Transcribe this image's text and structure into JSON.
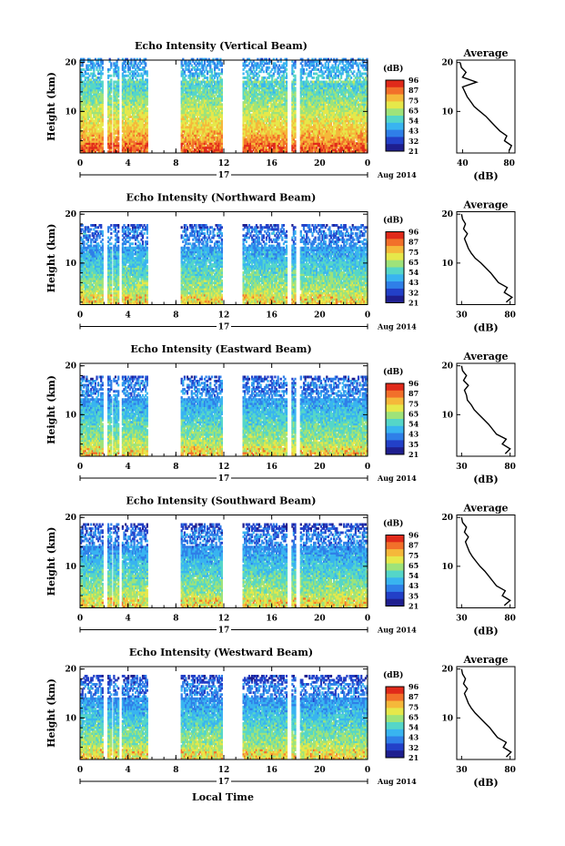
{
  "figure": {
    "xlabel": "Local Time",
    "date_day": "17",
    "date_label": "Aug 2014",
    "colorbar_unit": "(dB)",
    "avg_title": "Average",
    "avg_xlabel": "(dB)",
    "ylabel": "Height (km)"
  },
  "colors": {
    "cmap": [
      "#1f1f8f",
      "#2340c8",
      "#2f7fe8",
      "#39b4f0",
      "#55d6c8",
      "#9ee37a",
      "#e6e84a",
      "#f5b83a",
      "#f2702a",
      "#e02a1a"
    ]
  },
  "chart_data": [
    {
      "type": "heatmap",
      "title": "Echo Intensity (Vertical Beam)",
      "x_ticks": [
        "0",
        "4",
        "8",
        "12",
        "16",
        "20",
        "0"
      ],
      "y_ticks": [
        "20",
        "10"
      ],
      "xlim": [
        0,
        24
      ],
      "ylim": [
        1.5,
        20.5
      ],
      "colorbar_ticks": [
        "96",
        "87",
        "75",
        "65",
        "54",
        "43",
        "32",
        "21"
      ],
      "clim": [
        21,
        96
      ],
      "gaps_hours": [
        [
          1.9,
          2.3
        ],
        [
          2.6,
          2.8
        ],
        [
          3.2,
          3.5
        ],
        [
          5.6,
          8.4
        ],
        [
          11.9,
          13.5
        ],
        [
          17.3,
          17.6
        ],
        [
          18.0,
          18.3
        ]
      ],
      "top_height_km": 20,
      "surface_intensity_db": 85,
      "average_profile": {
        "xlim": [
          35,
          85
        ],
        "x_ticks": [
          "40",
          "80"
        ],
        "y_ticks": [
          "20",
          "10"
        ],
        "height_km": [
          2,
          3,
          4,
          5,
          6,
          7,
          8,
          9,
          10,
          11,
          12,
          13,
          14,
          15,
          16,
          17,
          18,
          19,
          20
        ],
        "intensity_db": [
          80,
          82,
          76,
          78,
          72,
          68,
          64,
          60,
          55,
          50,
          47,
          44,
          42,
          40,
          52,
          40,
          43,
          39,
          38
        ]
      }
    },
    {
      "type": "heatmap",
      "title": "Echo Intensity (Northward Beam)",
      "x_ticks": [
        "0",
        "4",
        "8",
        "12",
        "16",
        "20",
        "0"
      ],
      "y_ticks": [
        "20",
        "10"
      ],
      "xlim": [
        0,
        24
      ],
      "ylim": [
        1.5,
        20.5
      ],
      "colorbar_ticks": [
        "96",
        "87",
        "75",
        "65",
        "54",
        "43",
        "32",
        "21"
      ],
      "clim": [
        21,
        96
      ],
      "gaps_hours": [
        [
          1.9,
          2.3
        ],
        [
          2.6,
          2.8
        ],
        [
          3.2,
          3.5
        ],
        [
          5.6,
          8.4
        ],
        [
          11.9,
          13.5
        ],
        [
          17.3,
          17.6
        ],
        [
          18.0,
          18.3
        ]
      ],
      "top_height_km": 17,
      "surface_intensity_db": 70,
      "average_profile": {
        "xlim": [
          25,
          85
        ],
        "x_ticks": [
          "30",
          "80"
        ],
        "y_ticks": [
          "20",
          "10"
        ],
        "height_km": [
          2,
          3,
          4,
          5,
          6,
          7,
          8,
          9,
          10,
          11,
          12,
          13,
          14,
          15,
          16,
          17,
          18,
          19,
          20
        ],
        "intensity_db": [
          76,
          82,
          74,
          77,
          68,
          64,
          60,
          55,
          50,
          44,
          40,
          37,
          35,
          33,
          36,
          32,
          34,
          31,
          30
        ]
      }
    },
    {
      "type": "heatmap",
      "title": "Echo Intensity (Eastward Beam)",
      "x_ticks": [
        "0",
        "4",
        "8",
        "12",
        "16",
        "20",
        "0"
      ],
      "y_ticks": [
        "20",
        "10"
      ],
      "xlim": [
        0,
        24
      ],
      "ylim": [
        1.5,
        20.5
      ],
      "colorbar_ticks": [
        "96",
        "87",
        "75",
        "65",
        "54",
        "43",
        "35",
        "21"
      ],
      "clim": [
        21,
        96
      ],
      "gaps_hours": [
        [
          1.9,
          2.3
        ],
        [
          2.6,
          2.8
        ],
        [
          3.2,
          3.5
        ],
        [
          5.6,
          8.4
        ],
        [
          11.9,
          13.5
        ],
        [
          17.3,
          17.6
        ],
        [
          18.0,
          18.3
        ]
      ],
      "top_height_km": 17,
      "surface_intensity_db": 70,
      "average_profile": {
        "xlim": [
          25,
          85
        ],
        "x_ticks": [
          "30",
          "80"
        ],
        "y_ticks": [
          "20",
          "10"
        ],
        "height_km": [
          2,
          3,
          4,
          5,
          6,
          7,
          8,
          9,
          10,
          11,
          12,
          13,
          14,
          15,
          16,
          17,
          18,
          19,
          20
        ],
        "intensity_db": [
          75,
          80,
          72,
          76,
          66,
          62,
          58,
          53,
          48,
          43,
          40,
          36,
          35,
          33,
          37,
          32,
          35,
          31,
          30
        ]
      }
    },
    {
      "type": "heatmap",
      "title": "Echo Intensity (Southward Beam)",
      "x_ticks": [
        "0",
        "4",
        "8",
        "12",
        "16",
        "20",
        "0"
      ],
      "y_ticks": [
        "20",
        "10"
      ],
      "xlim": [
        0,
        24
      ],
      "ylim": [
        1.5,
        20.5
      ],
      "colorbar_ticks": [
        "96",
        "87",
        "75",
        "65",
        "54",
        "43",
        "35",
        "21"
      ],
      "clim": [
        21,
        96
      ],
      "gaps_hours": [
        [
          1.9,
          2.3
        ],
        [
          2.6,
          2.8
        ],
        [
          3.2,
          3.5
        ],
        [
          5.6,
          8.4
        ],
        [
          11.9,
          13.5
        ],
        [
          17.3,
          17.6
        ],
        [
          18.0,
          18.3
        ]
      ],
      "top_height_km": 18,
      "surface_intensity_db": 70,
      "average_profile": {
        "xlim": [
          25,
          85
        ],
        "x_ticks": [
          "30",
          "80"
        ],
        "y_ticks": [
          "20",
          "10"
        ],
        "height_km": [
          2,
          3,
          4,
          5,
          6,
          7,
          8,
          9,
          10,
          11,
          12,
          13,
          14,
          15,
          16,
          17,
          18,
          19,
          20
        ],
        "intensity_db": [
          74,
          80,
          72,
          75,
          66,
          62,
          58,
          54,
          49,
          45,
          41,
          38,
          36,
          34,
          37,
          33,
          35,
          31,
          30
        ]
      }
    },
    {
      "type": "heatmap",
      "title": "Echo Intensity (Westward Beam)",
      "x_ticks": [
        "0",
        "4",
        "8",
        "12",
        "16",
        "20",
        "0"
      ],
      "y_ticks": [
        "20",
        "10"
      ],
      "xlim": [
        0,
        24
      ],
      "ylim": [
        1.5,
        20.5
      ],
      "colorbar_ticks": [
        "96",
        "87",
        "75",
        "65",
        "54",
        "43",
        "32",
        "21"
      ],
      "clim": [
        21,
        96
      ],
      "gaps_hours": [
        [
          1.9,
          2.3
        ],
        [
          2.6,
          2.8
        ],
        [
          3.2,
          3.5
        ],
        [
          5.6,
          8.4
        ],
        [
          11.9,
          13.5
        ],
        [
          17.3,
          17.6
        ],
        [
          18.0,
          18.3
        ]
      ],
      "top_height_km": 18,
      "surface_intensity_db": 70,
      "average_profile": {
        "xlim": [
          25,
          85
        ],
        "x_ticks": [
          "30",
          "80"
        ],
        "y_ticks": [
          "20",
          "10"
        ],
        "height_km": [
          2,
          3,
          4,
          5,
          6,
          7,
          8,
          9,
          10,
          11,
          12,
          13,
          14,
          15,
          16,
          17,
          18,
          19,
          20
        ],
        "intensity_db": [
          76,
          81,
          73,
          76,
          67,
          63,
          59,
          54,
          49,
          44,
          40,
          37,
          35,
          33,
          36,
          32,
          34,
          31,
          30
        ]
      }
    }
  ]
}
